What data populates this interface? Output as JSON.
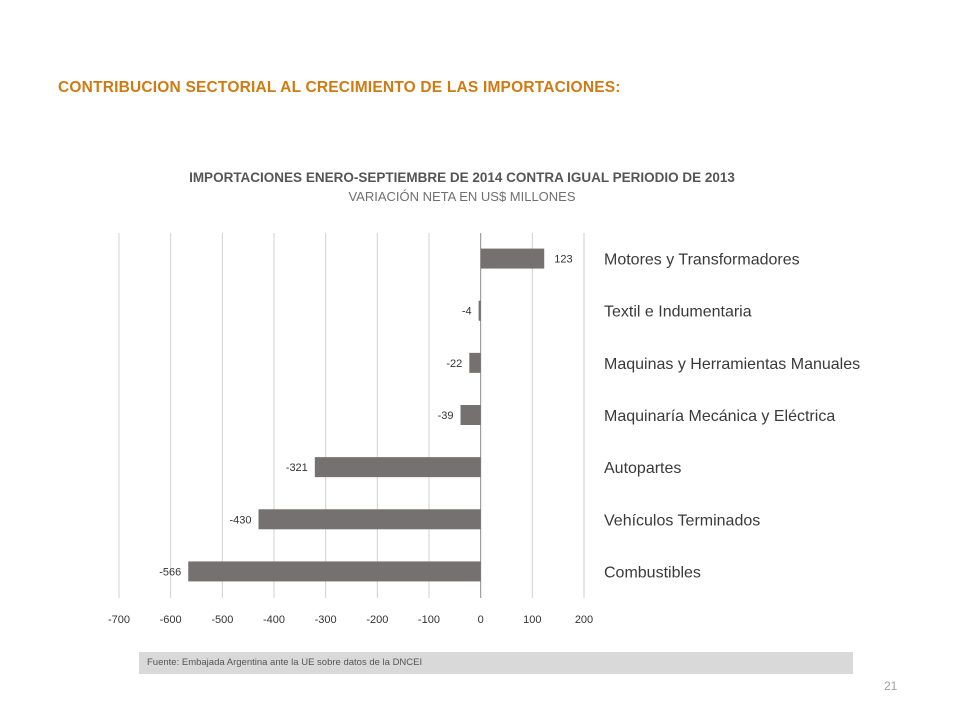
{
  "slide": {
    "title": "CONTRIBUCION SECTORIAL AL CRECIMIENTO DE LAS IMPORTACIONES:",
    "page_number": "21",
    "source": "Fuente: Embajada  Argentina ante la UE sobre datos de la DNCEI"
  },
  "chart_data": {
    "type": "bar",
    "orientation": "horizontal",
    "title": "IMPORTACIONES ENERO-SEPTIEMBRE DE 2014 CONTRA IGUAL PERIODIO DE 2013",
    "subtitle": "VARIACIÓN NETA EN US$ MILLONES",
    "categories": [
      "Motores y Transformadores",
      "Textil e Indumentaria",
      "Maquinas y Herramientas Manuales",
      "Maquinaría Mecánica y Eléctrica",
      "Autopartes",
      "Vehículos Terminados",
      "Combustibles"
    ],
    "values": [
      123,
      -4,
      -22,
      -39,
      -321,
      -430,
      -566
    ],
    "value_labels": [
      "123",
      "-4",
      "-22",
      "-39",
      "-321",
      "-430",
      "-566"
    ],
    "xlim": [
      -700,
      200
    ],
    "xticks": [
      -700,
      -600,
      -500,
      -400,
      -300,
      -200,
      -100,
      0,
      100,
      200
    ],
    "xtick_labels": [
      "-700",
      "-600",
      "-500",
      "-400",
      "-300",
      "-200",
      "-100",
      "0",
      "100",
      "200"
    ],
    "grid": "vertical",
    "bar_color": "#767171",
    "category_label_position": "right"
  }
}
